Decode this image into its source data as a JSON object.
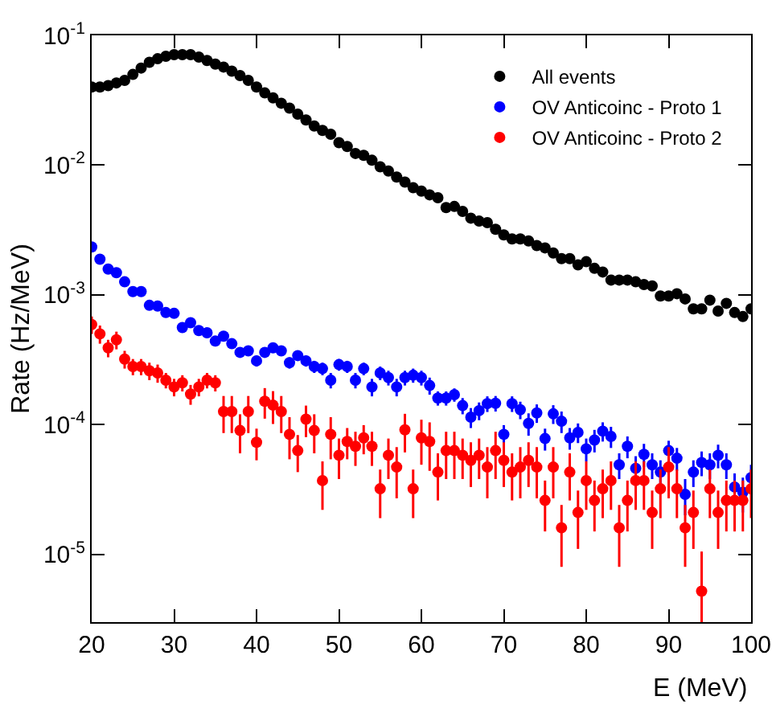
{
  "chart_data": {
    "type": "scatter",
    "xlabel": "E (MeV)",
    "ylabel": "Rate (Hz/MeV)",
    "x": [
      20,
      21,
      22,
      23,
      24,
      25,
      26,
      27,
      28,
      29,
      30,
      31,
      32,
      33,
      34,
      35,
      36,
      37,
      38,
      39,
      40,
      41,
      42,
      43,
      44,
      45,
      46,
      47,
      48,
      49,
      50,
      51,
      52,
      53,
      54,
      55,
      56,
      57,
      58,
      59,
      60,
      61,
      62,
      63,
      64,
      65,
      66,
      67,
      68,
      69,
      70,
      71,
      72,
      73,
      74,
      75,
      76,
      77,
      78,
      79,
      80,
      81,
      82,
      83,
      84,
      85,
      86,
      87,
      88,
      89,
      90,
      91,
      92,
      93,
      94,
      95,
      96,
      97,
      98,
      99,
      100
    ],
    "xlim": [
      20,
      100
    ],
    "xticks": [
      20,
      30,
      40,
      50,
      60,
      70,
      80,
      90,
      100
    ],
    "log": "y",
    "ylim": [
      3e-06,
      0.1
    ],
    "yticks": [
      {
        "value": 1e-05,
        "label": "10$^{-5}$"
      },
      {
        "value": 0.0001,
        "label": "10$^{-4}$"
      },
      {
        "value": 0.001,
        "label": "10$^{-3}$"
      },
      {
        "value": 0.01,
        "label": "10$^{-2}$"
      },
      {
        "value": 0.1,
        "label": "10$^{-1}$"
      }
    ],
    "grid": false,
    "legend": "top right",
    "marker": "circle",
    "series": [
      {
        "name": "All events",
        "color": "#000000",
        "values": [
          0.04,
          0.04,
          0.041,
          0.043,
          0.045,
          0.05,
          0.056,
          0.062,
          0.066,
          0.069,
          0.071,
          0.071,
          0.071,
          0.068,
          0.064,
          0.06,
          0.057,
          0.053,
          0.049,
          0.045,
          0.04,
          0.036,
          0.033,
          0.03,
          0.0275,
          0.0247,
          0.0223,
          0.02,
          0.0185,
          0.0173,
          0.0149,
          0.0139,
          0.0123,
          0.0119,
          0.0109,
          0.0097,
          0.009,
          0.0081,
          0.0074,
          0.0067,
          0.0063,
          0.0059,
          0.0056,
          0.0047,
          0.0048,
          0.0044,
          0.0039,
          0.0037,
          0.0036,
          0.0032,
          0.0029,
          0.0027,
          0.0027,
          0.0026,
          0.0024,
          0.0023,
          0.0021,
          0.0019,
          0.0019,
          0.0017,
          0.0018,
          0.0016,
          0.0015,
          0.0013,
          0.0013,
          0.0013,
          0.00126,
          0.0012,
          0.00117,
          0.00098,
          0.00098,
          0.00102,
          0.00093,
          0.00078,
          0.00078,
          0.00091,
          0.00075,
          0.00086,
          0.00073,
          0.00068,
          0.00078
        ]
      },
      {
        "name": "OV Anticoinc - Proto 1",
        "color": "#0000ff",
        "values": [
          0.00234,
          0.00188,
          0.00158,
          0.00148,
          0.00126,
          0.00106,
          0.00106,
          0.00083,
          0.00082,
          0.00073,
          0.00072,
          0.00056,
          0.00061,
          0.00053,
          0.00051,
          0.00044,
          0.00048,
          0.00042,
          0.00036,
          0.00037,
          0.00031,
          0.00036,
          0.00039,
          0.00037,
          0.0003,
          0.00034,
          0.00031,
          0.00028,
          0.00027,
          0.00022,
          0.00029,
          0.00028,
          0.00022,
          0.00027,
          0.000195,
          0.00025,
          0.00023,
          0.000195,
          0.00023,
          0.00024,
          0.00023,
          0.0002,
          0.00016,
          0.00016,
          0.00017,
          0.00014,
          0.000114,
          0.000128,
          0.000145,
          0.000146,
          8.4e-05,
          0.000145,
          0.00013,
          0.000102,
          0.000123,
          7.8e-05,
          0.000121,
          0.000106,
          7.9e-05,
          8.7e-05,
          6.5e-05,
          7.6e-05,
          8.9e-05,
          8.1e-05,
          4.9e-05,
          6.8e-05,
          4.6e-05,
          5.9e-05,
          4.9e-05,
          4.3e-05,
          6.3e-05,
          5.5e-05,
          2.9e-05,
          4.3e-05,
          5.1e-05,
          4.9e-05,
          5.8e-05,
          4.9e-05,
          3.3e-05,
          3e-05,
          3.9e-05
        ],
        "errors": [
          0.0001,
          9e-05,
          8e-05,
          8e-05,
          7e-05,
          6e-05,
          6e-05,
          5e-05,
          5e-05,
          5e-05,
          5e-05,
          4e-05,
          4e-05,
          4e-05,
          4e-05,
          4e-05,
          4e-05,
          3e-05,
          3e-05,
          3e-05,
          3e-05,
          3e-05,
          3e-05,
          3e-05,
          3e-05,
          3e-05,
          3e-05,
          3e-05,
          3e-05,
          3e-05,
          3e-05,
          3e-05,
          3e-05,
          3e-05,
          3e-05,
          3e-05,
          3e-05,
          3e-05,
          3e-05,
          3e-05,
          3e-05,
          3e-05,
          2e-05,
          2e-05,
          2e-05,
          2e-05,
          2e-05,
          2e-05,
          2e-05,
          2e-05,
          1.5e-05,
          2e-05,
          2e-05,
          2e-05,
          2e-05,
          1.5e-05,
          2e-05,
          2e-05,
          1.5e-05,
          1.5e-05,
          1.3e-05,
          1.5e-05,
          1.5e-05,
          1.5e-05,
          1.1e-05,
          1.3e-05,
          1.1e-05,
          1.2e-05,
          1.1e-05,
          1e-05,
          1.2e-05,
          1.1e-05,
          9e-06,
          1e-05,
          1.1e-05,
          1.1e-05,
          1.2e-05,
          1.1e-05,
          9e-06,
          9e-06,
          1e-05
        ]
      },
      {
        "name": "OV Anticoinc - Proto 2",
        "color": "#ff0000",
        "values": [
          0.00059,
          0.0005,
          0.00039,
          0.00045,
          0.00032,
          0.00028,
          0.00028,
          0.00026,
          0.00025,
          0.00022,
          0.000195,
          0.00021,
          0.000172,
          0.000195,
          0.00022,
          0.00021,
          0.000126,
          0.000126,
          9e-05,
          0.000126,
          7.3e-05,
          0.000151,
          0.000141,
          0.000126,
          8.4e-05,
          6.3e-05,
          0.00011,
          9e-05,
          3.7e-05,
          8.4e-05,
          5.8e-05,
          7.4e-05,
          6.8e-05,
          7.9e-05,
          6.8e-05,
          3.2e-05,
          5.8e-05,
          4.7e-05,
          9.1e-05,
          3.2e-05,
          7.9e-05,
          7.4e-05,
          4.3e-05,
          6.3e-05,
          6.3e-05,
          5.8e-05,
          5.3e-05,
          5.8e-05,
          4.7e-05,
          6.3e-05,
          5.3e-05,
          4.3e-05,
          4.7e-05,
          5.3e-05,
          4.7e-05,
          2.6e-05,
          4.7e-05,
          1.6e-05,
          4.3e-05,
          2.1e-05,
          3.7e-05,
          2.6e-05,
          3.2e-05,
          3.7e-05,
          1.6e-05,
          2.6e-05,
          3.7e-05,
          3.7e-05,
          2.1e-05,
          3.2e-05,
          4.7e-05,
          3.2e-05,
          1.6e-05,
          2.1e-05,
          5.2e-06,
          3.2e-05,
          2.1e-05,
          2.6e-05,
          2.6e-05,
          2.6e-05,
          3.2e-05
        ],
        "errors": [
          9e-05,
          8e-05,
          6e-05,
          7e-05,
          5e-05,
          4e-05,
          4e-05,
          4e-05,
          4e-05,
          3e-05,
          3e-05,
          3e-05,
          3e-05,
          3e-05,
          3e-05,
          3e-05,
          4e-05,
          4e-05,
          3e-05,
          4e-05,
          2e-05,
          4e-05,
          4e-05,
          4e-05,
          3e-05,
          2e-05,
          3e-05,
          3e-05,
          1.5e-05,
          3e-05,
          2e-05,
          2e-05,
          2e-05,
          2e-05,
          2e-05,
          1.3e-05,
          2e-05,
          2e-05,
          3e-05,
          1.3e-05,
          3e-05,
          3e-05,
          1.7e-05,
          2.5e-05,
          2.5e-05,
          2e-05,
          2e-05,
          2e-05,
          2e-05,
          2.5e-05,
          2e-05,
          1.7e-05,
          2e-05,
          2e-05,
          2e-05,
          1.1e-05,
          2e-05,
          8e-06,
          1.7e-05,
          1e-05,
          1.5e-05,
          1.1e-05,
          1.3e-05,
          1.5e-05,
          8e-06,
          1.1e-05,
          1.5e-05,
          1.5e-05,
          1e-05,
          1.3e-05,
          2e-05,
          1.3e-05,
          8e-06,
          1e-05,
          [
            3e-06,
            1.05e-05
          ],
          1.3e-05,
          1e-05,
          1.1e-05,
          1.1e-05,
          1.1e-05,
          1.3e-05
        ]
      }
    ]
  }
}
